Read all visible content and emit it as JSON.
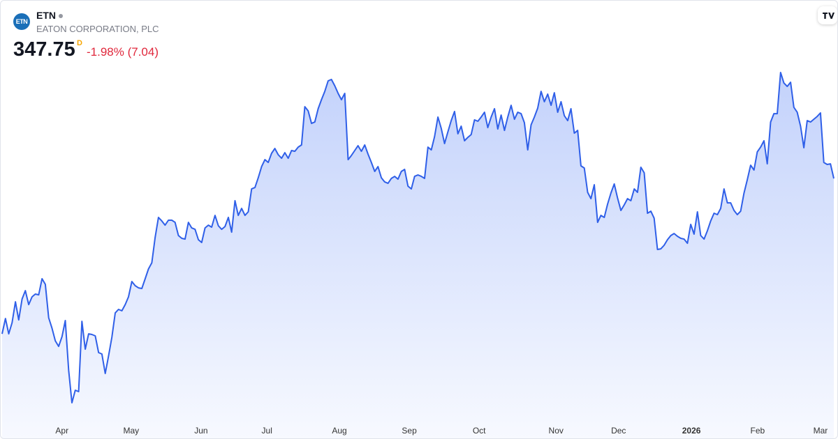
{
  "header": {
    "logo": "ETN",
    "symbol": "ETN",
    "company": "EATON CORPORATION, PLC",
    "price": 347.75,
    "interval": "D",
    "change": "-1.98% (7.04)"
  },
  "chart_data": {
    "type": "area",
    "color": "#2f5fe8",
    "values": [
      269.7,
      277.4,
      269.7,
      275.3,
      285.8,
      276.7,
      287.2,
      291.4,
      284.4,
      288.3,
      289.7,
      289.3,
      297.4,
      294.6,
      277.8,
      272.5,
      266.2,
      263.4,
      268.3,
      276.4,
      251.5,
      235.1,
      241.4,
      240.7,
      276,
      262,
      269.7,
      269.4,
      268.7,
      260.3,
      259.6,
      249.8,
      258.5,
      268,
      280.2,
      282,
      281.3,
      284.4,
      288.3,
      296,
      293.9,
      292.8,
      292.5,
      297.4,
      302.3,
      305.4,
      318,
      328.2,
      326.4,
      324.3,
      326.8,
      326.8,
      325.7,
      319.1,
      317.7,
      317.3,
      325.7,
      322.9,
      322.2,
      317,
      315.6,
      322.9,
      324.3,
      323.3,
      329.2,
      324,
      322.2,
      323.6,
      328.2,
      320.8,
      336.6,
      329.2,
      332.7,
      329.2,
      331,
      342.5,
      343.2,
      348.1,
      353.7,
      357.2,
      355.8,
      360.4,
      362.8,
      359.7,
      357.9,
      360.7,
      357.9,
      361.8,
      361.4,
      363.5,
      364.6,
      383.8,
      381.7,
      375.4,
      376.1,
      382.8,
      387.3,
      391.5,
      396.8,
      397.5,
      394.3,
      390.5,
      387.3,
      390.5,
      357.2,
      359.3,
      361.8,
      364.2,
      361.4,
      364.6,
      360,
      355.8,
      351.3,
      353.7,
      348.1,
      346,
      345.3,
      347.8,
      348.8,
      347.4,
      351.3,
      352.3,
      343.9,
      342.5,
      348.8,
      349.5,
      348.8,
      347.8,
      363.5,
      362.1,
      368.8,
      378.6,
      373,
      365.3,
      371.2,
      376.8,
      381.4,
      370.2,
      374,
      366.7,
      368.4,
      369.8,
      377.2,
      376.5,
      378.6,
      381,
      373.3,
      378.6,
      382.8,
      372.6,
      379.6,
      371.9,
      378.6,
      384.5,
      377.5,
      381,
      380.3,
      375.8,
      362.1,
      374.7,
      378.6,
      383.1,
      391.5,
      386.3,
      390.1,
      384.5,
      390.8,
      381,
      386.3,
      379.3,
      376.8,
      382.8,
      370.5,
      371.9,
      354.1,
      353,
      340.8,
      337.6,
      344.6,
      325.7,
      329.2,
      328.2,
      334.8,
      340.4,
      345,
      338,
      331.7,
      334.5,
      337.6,
      336.6,
      342.5,
      340.8,
      353.4,
      350.6,
      330.3,
      331.3,
      327.8,
      312.1,
      312.4,
      314.2,
      317,
      319.1,
      320.1,
      318.7,
      317.7,
      317.3,
      315.2,
      324.7,
      319.8,
      331,
      319.1,
      317.3,
      321.5,
      326.4,
      330.3,
      329.6,
      332.7,
      342.5,
      335.5,
      335.5,
      331.7,
      329.6,
      331.3,
      340.4,
      347.1,
      354.4,
      352,
      361.1,
      363.5,
      366.7,
      355.1,
      376.1,
      380.3,
      380.3,
      401,
      395.7,
      394,
      396.1,
      383.5,
      381,
      374,
      363.2,
      376.8,
      376.1,
      377.5,
      378.9,
      380.7,
      355.8,
      354.8,
      355.1,
      347.75
    ],
    "xticks": [
      {
        "value": 18,
        "label": "Apr"
      },
      {
        "value": 38.8,
        "label": "May"
      },
      {
        "value": 59.8,
        "label": "Jun"
      },
      {
        "value": 79.6,
        "label": "Jul"
      },
      {
        "value": 101.4,
        "label": "Aug"
      },
      {
        "value": 122.4,
        "label": "Sep"
      },
      {
        "value": 143.4,
        "label": "Oct"
      },
      {
        "value": 166.5,
        "label": "Nov"
      },
      {
        "value": 185.3,
        "label": "Dec"
      },
      {
        "value": 207.2,
        "label": "2026"
      },
      {
        "value": 227.1,
        "label": "Feb"
      },
      {
        "value": 246,
        "label": "Mar"
      }
    ]
  }
}
